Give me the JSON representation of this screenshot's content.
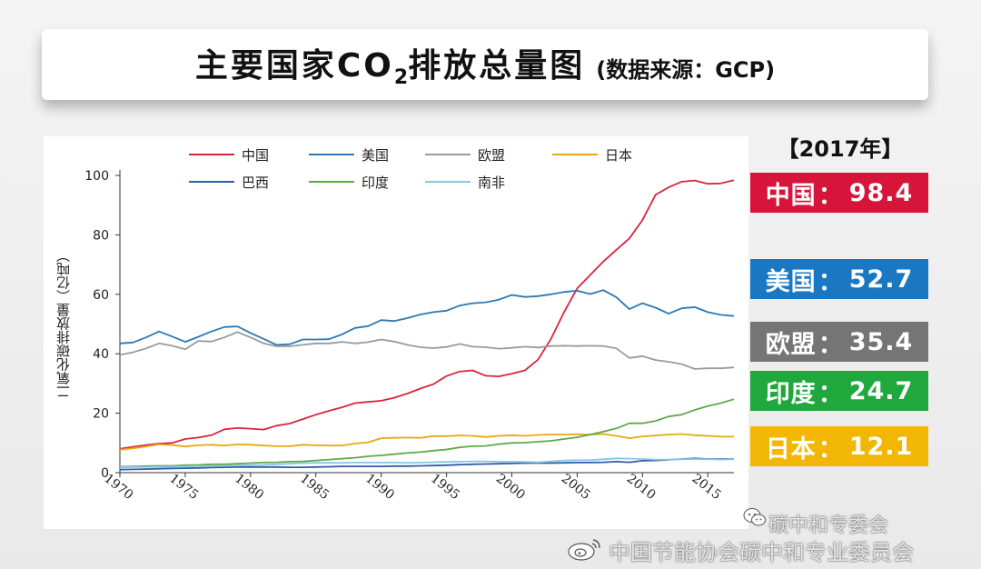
{
  "title": {
    "main_prefix": "主要国家CO",
    "main_sub": "2",
    "main_suffix": "排放总量图",
    "note": "(数据来源：GCP)"
  },
  "year_header": "【2017年】",
  "badges": [
    {
      "country": "中国",
      "sep": "：",
      "value": "98.4",
      "color": "#d7153a"
    },
    {
      "country": "美国",
      "sep": "：",
      "value": "52.7",
      "color": "#1a78c2"
    },
    {
      "country": "欧盟",
      "sep": "：",
      "value": "35.4",
      "color": "#757575"
    },
    {
      "country": "印度",
      "sep": "：",
      "value": "24.7",
      "color": "#20a83c"
    },
    {
      "country": "日本",
      "sep": "：",
      "value": "12.1",
      "color": "#f2b705"
    }
  ],
  "watermarks": {
    "wechat_account": "碳中和专委会",
    "weibo_account": "中国节能协会碳中和专业委员会",
    "wechat_icon": "wechat-icon",
    "weibo_icon": "weibo-icon"
  },
  "chart_data": {
    "type": "line",
    "ylabel": "二氧化碳排放量（亿吨）",
    "xlabel": "",
    "ylim": [
      0,
      100
    ],
    "xlim": [
      1970,
      2017
    ],
    "yticks": [
      0,
      20,
      40,
      60,
      80,
      100
    ],
    "xticks": [
      1970,
      1975,
      1980,
      1985,
      1990,
      1995,
      2000,
      2005,
      2010,
      2015
    ],
    "grid": false,
    "legend_position": "top",
    "x": [
      1970,
      1971,
      1972,
      1973,
      1974,
      1975,
      1976,
      1977,
      1978,
      1979,
      1980,
      1981,
      1982,
      1983,
      1984,
      1985,
      1986,
      1987,
      1988,
      1989,
      1990,
      1991,
      1992,
      1993,
      1994,
      1995,
      1996,
      1997,
      1998,
      1999,
      2000,
      2001,
      2002,
      2003,
      2004,
      2005,
      2006,
      2007,
      2008,
      2009,
      2010,
      2011,
      2012,
      2013,
      2014,
      2015,
      2016,
      2017
    ],
    "series": [
      {
        "name": "中国",
        "color": "#d7263d",
        "values": [
          8,
          8.7,
          9.3,
          9.8,
          10,
          11.3,
          11.8,
          12.6,
          14.6,
          15,
          14.8,
          14.5,
          15.8,
          16.5,
          18,
          19.5,
          20.8,
          22,
          23.4,
          23.8,
          24.2,
          25.2,
          26.6,
          28.3,
          29.8,
          32.5,
          34,
          34.4,
          32.6,
          32.4,
          33.3,
          34.4,
          38,
          45,
          54,
          62,
          66.5,
          71,
          75,
          78.8,
          85,
          93.5,
          96,
          97.9,
          98.3,
          97.2,
          97.3,
          98.4
        ]
      },
      {
        "name": "美国",
        "color": "#2d78b4",
        "values": [
          43.5,
          43.8,
          45.5,
          47.5,
          45.8,
          44,
          45.7,
          47.5,
          49,
          49.2,
          47,
          45,
          43,
          43.2,
          44.8,
          44.8,
          44.9,
          46.5,
          48.7,
          49.3,
          51.3,
          51,
          52,
          53.2,
          54,
          54.5,
          56.2,
          57,
          57.3,
          58.2,
          59.8,
          59.1,
          59.4,
          60,
          60.8,
          61.2,
          60.1,
          61.4,
          59,
          55,
          57,
          55.5,
          53.5,
          55.3,
          55.7,
          54,
          53.1,
          52.7
        ]
      },
      {
        "name": "欧盟",
        "color": "#9a9a9a",
        "values": [
          39.6,
          40.5,
          41.8,
          43.5,
          42.7,
          41.5,
          44.3,
          44.1,
          45.5,
          47.3,
          45.5,
          43.5,
          42.5,
          42.5,
          43,
          43.5,
          43.5,
          44,
          43.5,
          43.9,
          44.8,
          44.1,
          43,
          42.2,
          41.9,
          42.3,
          43.3,
          42.4,
          42.2,
          41.7,
          42,
          42.4,
          42.1,
          42.6,
          42.7,
          42.6,
          42.7,
          42.6,
          41.8,
          38.6,
          39.2,
          37.9,
          37.3,
          36.5,
          34.9,
          35.1,
          35.1,
          35.4
        ]
      },
      {
        "name": "日本",
        "color": "#e8a812",
        "values": [
          7.7,
          8.2,
          8.8,
          9.5,
          9.3,
          8.8,
          9.2,
          9.4,
          9.1,
          9.5,
          9.4,
          9.1,
          8.9,
          8.9,
          9.4,
          9.2,
          9.1,
          9.1,
          9.8,
          10.2,
          11.6,
          11.7,
          11.8,
          11.7,
          12.3,
          12.3,
          12.5,
          12.4,
          12,
          12.4,
          12.6,
          12.4,
          12.7,
          12.8,
          12.8,
          12.9,
          12.8,
          13,
          12.4,
          11.6,
          12.2,
          12.5,
          12.8,
          13,
          12.6,
          12.4,
          12.1,
          12.1
        ]
      },
      {
        "name": "巴西",
        "color": "#2f5da8",
        "values": [
          1,
          1.1,
          1.2,
          1.3,
          1.4,
          1.5,
          1.6,
          1.7,
          1.8,
          1.9,
          1.9,
          1.9,
          1.9,
          1.8,
          1.8,
          1.9,
          2,
          2.1,
          2.1,
          2.1,
          2.1,
          2.2,
          2.2,
          2.3,
          2.4,
          2.5,
          2.7,
          2.8,
          2.9,
          3,
          3.1,
          3.2,
          3.2,
          3.2,
          3.3,
          3.4,
          3.4,
          3.5,
          3.7,
          3.5,
          4,
          4.1,
          4.3,
          4.6,
          4.8,
          4.6,
          4.6,
          4.6
        ]
      },
      {
        "name": "印度",
        "color": "#5fa84a",
        "values": [
          2,
          2.1,
          2.2,
          2.3,
          2.3,
          2.5,
          2.6,
          2.8,
          2.8,
          3,
          3.2,
          3.4,
          3.5,
          3.7,
          3.8,
          4.1,
          4.4,
          4.7,
          5,
          5.5,
          5.8,
          6.2,
          6.6,
          6.9,
          7.4,
          7.8,
          8.5,
          8.9,
          9,
          9.6,
          10,
          10.1,
          10.4,
          10.7,
          11.3,
          11.9,
          12.8,
          13.8,
          14.9,
          16.6,
          16.6,
          17.4,
          18.9,
          19.5,
          21.1,
          22.4,
          23.4,
          24.7
        ]
      },
      {
        "name": "南非",
        "color": "#8cc4e4",
        "values": [
          1.8,
          1.9,
          1.9,
          2,
          2,
          2.1,
          2.2,
          2.2,
          2.3,
          2.4,
          2.5,
          2.6,
          2.8,
          3,
          3.2,
          3.3,
          3.3,
          3.3,
          3.4,
          3.4,
          3.4,
          3.4,
          3.3,
          3.4,
          3.5,
          3.6,
          3.7,
          3.8,
          3.8,
          3.7,
          3.7,
          3.6,
          3.5,
          3.8,
          4.1,
          4.2,
          4.2,
          4.5,
          4.8,
          4.7,
          4.6,
          4.4,
          4.4,
          4.5,
          4.6,
          4.5,
          4.4,
          4.5
        ]
      }
    ]
  }
}
